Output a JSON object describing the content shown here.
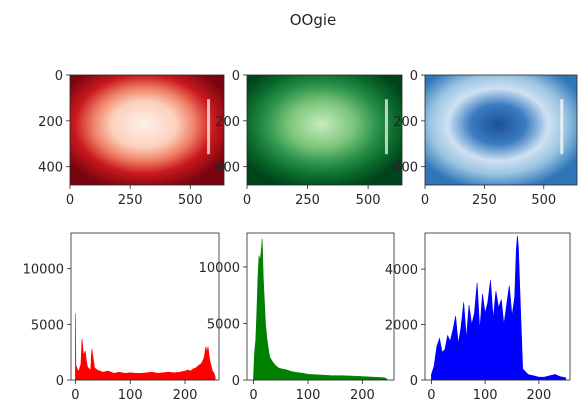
{
  "figure": {
    "title": "OOgie"
  },
  "colors": {
    "red": "#ff0000",
    "green": "#008000",
    "blue": "#0000ff",
    "axis": "#262626"
  },
  "chart_data": [
    {
      "type": "image",
      "colormap": "Reds",
      "xticks": [
        0,
        250,
        500
      ],
      "yticks": [
        0,
        200,
        400
      ],
      "xlim": [
        0,
        640
      ],
      "ylim": [
        480,
        0
      ]
    },
    {
      "type": "image",
      "colormap": "Greens",
      "xticks": [
        0,
        250,
        500
      ],
      "yticks": [
        0,
        200,
        400
      ],
      "xlim": [
        0,
        640
      ],
      "ylim": [
        480,
        0
      ]
    },
    {
      "type": "image",
      "colormap": "Blues",
      "xticks": [
        0,
        250,
        500
      ],
      "yticks": [
        0,
        200,
        400
      ],
      "xlim": [
        0,
        640
      ],
      "ylim": [
        480,
        0
      ]
    },
    {
      "type": "area",
      "color": "#ff0000",
      "xticks": [
        0,
        100,
        200
      ],
      "yticks": [
        0,
        5000,
        10000
      ],
      "xlim": [
        -8,
        262
      ],
      "ylim": [
        0,
        13200
      ],
      "x": [
        0,
        1,
        2,
        4,
        6,
        8,
        10,
        12,
        15,
        18,
        20,
        22,
        25,
        28,
        30,
        35,
        40,
        45,
        50,
        60,
        70,
        80,
        90,
        100,
        110,
        120,
        130,
        140,
        150,
        160,
        170,
        180,
        190,
        200,
        205,
        210,
        215,
        220,
        225,
        230,
        235,
        238,
        240,
        242,
        245,
        248,
        250,
        252,
        255
      ],
      "values": [
        6000,
        1000,
        1200,
        900,
        800,
        1100,
        1400,
        3700,
        2200,
        2600,
        1800,
        1200,
        1000,
        900,
        2800,
        1100,
        900,
        800,
        700,
        800,
        600,
        700,
        600,
        650,
        600,
        600,
        650,
        700,
        600,
        650,
        700,
        650,
        700,
        800,
        900,
        800,
        1000,
        1100,
        1300,
        1500,
        2000,
        3000,
        2500,
        3000,
        1800,
        1200,
        800,
        700,
        300
      ]
    },
    {
      "type": "area",
      "color": "#008000",
      "xticks": [
        0,
        100,
        200
      ],
      "yticks": [
        0,
        5000,
        10000
      ],
      "xlim": [
        -12,
        258
      ],
      "ylim": [
        0,
        13000
      ],
      "x": [
        0,
        2,
        4,
        6,
        8,
        10,
        12,
        14,
        16,
        18,
        20,
        22,
        25,
        28,
        30,
        35,
        40,
        45,
        50,
        60,
        70,
        80,
        90,
        100,
        120,
        140,
        160,
        180,
        200,
        220,
        240,
        245
      ],
      "values": [
        300,
        2500,
        3500,
        6000,
        9000,
        11000,
        10500,
        11400,
        12500,
        9000,
        7000,
        5000,
        3500,
        2500,
        2000,
        1600,
        1300,
        1100,
        1000,
        900,
        750,
        650,
        600,
        500,
        450,
        400,
        380,
        350,
        300,
        250,
        200,
        100
      ]
    },
    {
      "type": "area",
      "color": "#0000ff",
      "xticks": [
        0,
        100,
        200
      ],
      "yticks": [
        0,
        2000,
        4000
      ],
      "xlim": [
        -12,
        258
      ],
      "ylim": [
        0,
        5300
      ],
      "x": [
        0,
        5,
        10,
        15,
        20,
        25,
        30,
        35,
        40,
        45,
        50,
        55,
        60,
        65,
        70,
        75,
        80,
        85,
        90,
        95,
        100,
        105,
        110,
        115,
        120,
        125,
        130,
        135,
        140,
        145,
        150,
        155,
        158,
        160,
        162,
        165,
        170,
        180,
        190,
        200,
        210,
        220,
        230,
        240,
        250
      ],
      "values": [
        200,
        500,
        1200,
        1500,
        1000,
        1100,
        1600,
        1400,
        1800,
        2300,
        1300,
        1900,
        2800,
        1500,
        2700,
        2000,
        2400,
        3500,
        1800,
        3100,
        2400,
        2800,
        3600,
        2200,
        3200,
        2600,
        2900,
        2000,
        2700,
        3400,
        2300,
        3000,
        4700,
        5200,
        4800,
        3000,
        400,
        200,
        150,
        100,
        100,
        150,
        200,
        120,
        80
      ]
    }
  ]
}
